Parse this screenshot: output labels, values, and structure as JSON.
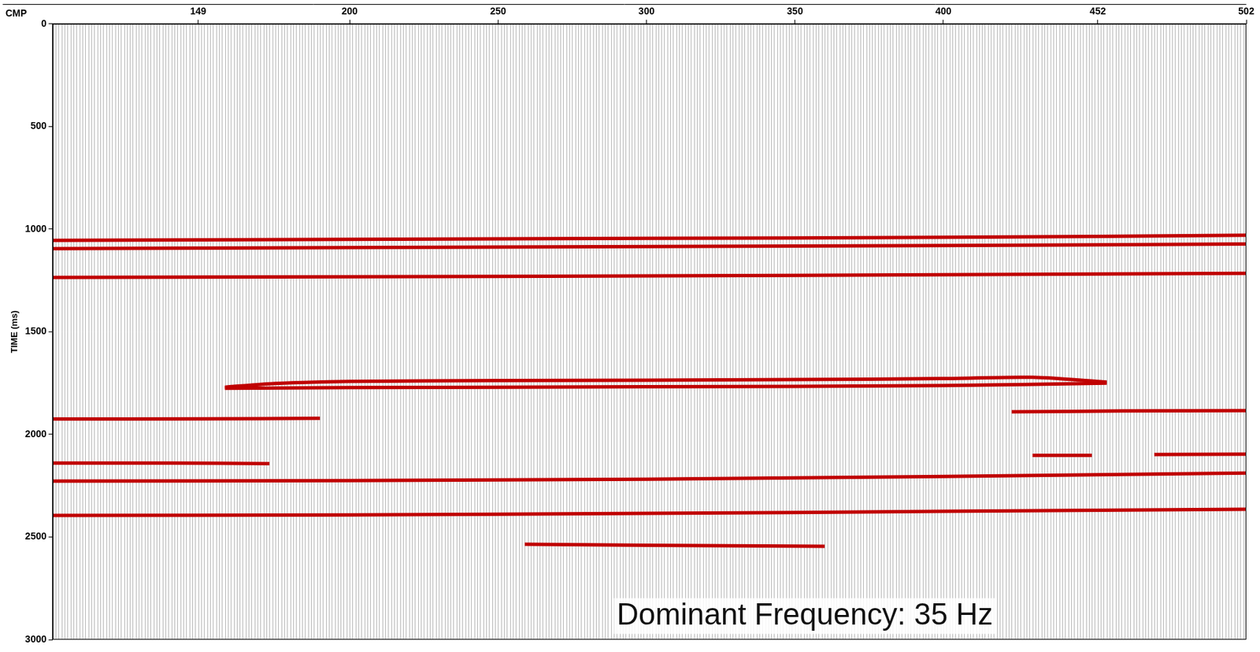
{
  "chart_data": {
    "type": "line",
    "x_label": "CMP",
    "y_label": "TIME (ms)",
    "annotations": [
      {
        "text": "Dominant Frequency: 35 Hz",
        "x": 290,
        "y": 2885
      }
    ],
    "xlim": [
      100,
      502
    ],
    "xticks": [
      149,
      200,
      250,
      300,
      350,
      400,
      452,
      502
    ],
    "ylim": [
      0,
      3000
    ],
    "yticks": [
      0,
      500,
      1000,
      1500,
      2000,
      2500,
      3000
    ],
    "grid": false,
    "series": [
      {
        "color": "#c00000",
        "x": [
          100,
          200,
          300,
          400,
          502
        ],
        "values": [
          1055,
          1050,
          1045,
          1040,
          1030
        ]
      },
      {
        "color": "#c00000",
        "x": [
          100,
          200,
          300,
          400,
          502
        ],
        "values": [
          1095,
          1090,
          1085,
          1080,
          1072
        ]
      },
      {
        "color": "#c00000",
        "x": [
          100,
          200,
          300,
          400,
          502
        ],
        "values": [
          1235,
          1232,
          1228,
          1222,
          1215
        ]
      },
      {
        "color": "#c00000",
        "x": [
          158,
          175,
          200,
          250,
          300,
          350,
          400,
          430,
          455
        ],
        "values": [
          1770,
          1752,
          1742,
          1738,
          1736,
          1733,
          1728,
          1722,
          1745
        ]
      },
      {
        "color": "#c00000",
        "x": [
          158,
          200,
          300,
          400,
          455
        ],
        "values": [
          1775,
          1772,
          1768,
          1762,
          1750
        ]
      },
      {
        "color": "#c00000",
        "x": [
          100,
          150,
          190
        ],
        "values": [
          1925,
          1924,
          1922
        ]
      },
      {
        "color": "#c00000",
        "x": [
          423,
          460,
          502
        ],
        "values": [
          1890,
          1886,
          1884
        ]
      },
      {
        "color": "#c00000",
        "x": [
          100,
          140,
          173
        ],
        "values": [
          2140,
          2140,
          2142
        ]
      },
      {
        "color": "#c00000",
        "x": [
          430,
          450
        ],
        "values": [
          2102,
          2102
        ]
      },
      {
        "color": "#c00000",
        "x": [
          471,
          502
        ],
        "values": [
          2098,
          2096
        ]
      },
      {
        "color": "#c00000",
        "x": [
          100,
          200,
          300,
          400,
          502
        ],
        "values": [
          2228,
          2225,
          2218,
          2205,
          2188
        ]
      },
      {
        "color": "#c00000",
        "x": [
          100,
          200,
          300,
          400,
          502
        ],
        "values": [
          2395,
          2392,
          2385,
          2375,
          2365
        ]
      },
      {
        "color": "#c00000",
        "x": [
          259,
          300,
          360
        ],
        "values": [
          2535,
          2540,
          2545
        ]
      }
    ]
  }
}
